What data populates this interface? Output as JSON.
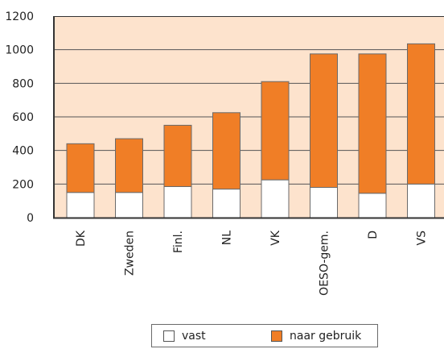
{
  "chart_data": {
    "type": "bar",
    "stacked": true,
    "categories": [
      "DK",
      "Zweden",
      "Finl.",
      "NL",
      "VK",
      "OESO-gem.",
      "D",
      "VS"
    ],
    "series": [
      {
        "name": "vast",
        "values": [
          150,
          150,
          185,
          170,
          225,
          180,
          145,
          200
        ],
        "color": "#ffffff"
      },
      {
        "name": "naar gebruik",
        "values": [
          290,
          320,
          365,
          455,
          585,
          795,
          830,
          835
        ],
        "color": "#f07e26"
      }
    ],
    "ylim": [
      0,
      1200
    ],
    "yticks": [
      "0",
      "200",
      "400",
      "600",
      "800",
      "1000",
      "1200"
    ],
    "grid": true,
    "plot_background": "#fde3cd",
    "legend_position": "bottom"
  }
}
